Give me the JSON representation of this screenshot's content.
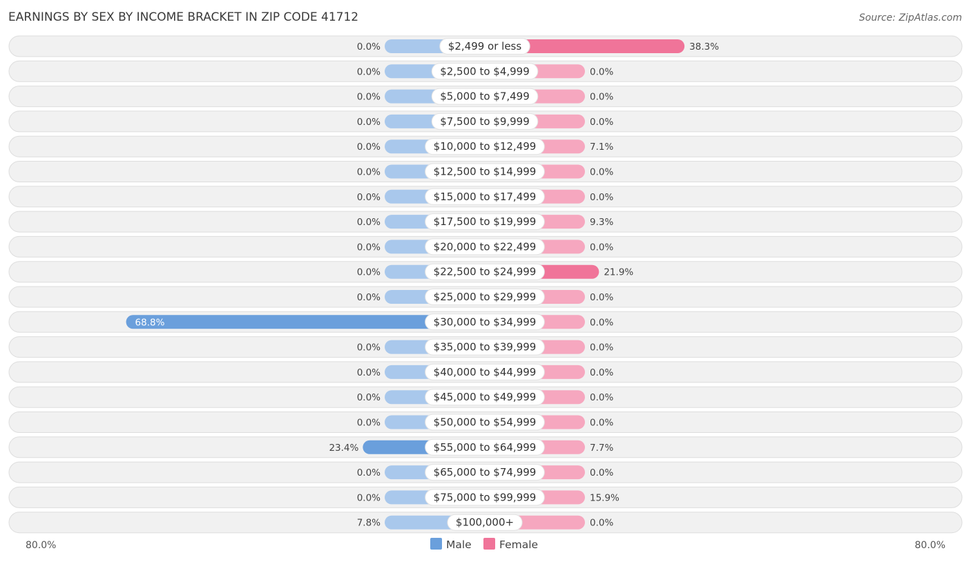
{
  "chart_data": {
    "type": "bar",
    "orientation": "horizontal-diverging",
    "title": "EARNINGS BY SEX BY INCOME BRACKET IN ZIP CODE 41712",
    "source": "Source: ZipAtlas.com",
    "categories": [
      "$2,499 or less",
      "$2,500 to $4,999",
      "$5,000 to $7,499",
      "$7,500 to $9,999",
      "$10,000 to $12,499",
      "$12,500 to $14,999",
      "$15,000 to $17,499",
      "$17,500 to $19,999",
      "$20,000 to $22,499",
      "$22,500 to $24,999",
      "$25,000 to $29,999",
      "$30,000 to $34,999",
      "$35,000 to $39,999",
      "$40,000 to $44,999",
      "$45,000 to $49,999",
      "$50,000 to $54,999",
      "$55,000 to $64,999",
      "$65,000 to $74,999",
      "$75,000 to $99,999",
      "$100,000+"
    ],
    "series": [
      {
        "name": "Male",
        "color": "#6a9fdc",
        "values": [
          0.0,
          0.0,
          0.0,
          0.0,
          0.0,
          0.0,
          0.0,
          0.0,
          0.0,
          0.0,
          0.0,
          68.8,
          0.0,
          0.0,
          0.0,
          0.0,
          23.4,
          0.0,
          0.0,
          7.8
        ],
        "labels": [
          "0.0%",
          "0.0%",
          "0.0%",
          "0.0%",
          "0.0%",
          "0.0%",
          "0.0%",
          "0.0%",
          "0.0%",
          "0.0%",
          "0.0%",
          "68.8%",
          "0.0%",
          "0.0%",
          "0.0%",
          "0.0%",
          "23.4%",
          "0.0%",
          "0.0%",
          "7.8%"
        ]
      },
      {
        "name": "Female",
        "color": "#f07499",
        "values": [
          38.3,
          0.0,
          0.0,
          0.0,
          7.1,
          0.0,
          0.0,
          9.3,
          0.0,
          21.9,
          0.0,
          0.0,
          0.0,
          0.0,
          0.0,
          0.0,
          7.7,
          0.0,
          15.9,
          0.0
        ],
        "labels": [
          "38.3%",
          "0.0%",
          "0.0%",
          "0.0%",
          "7.1%",
          "0.0%",
          "0.0%",
          "9.3%",
          "0.0%",
          "21.9%",
          "0.0%",
          "0.0%",
          "0.0%",
          "0.0%",
          "0.0%",
          "0.0%",
          "7.7%",
          "0.0%",
          "15.9%",
          "0.0%"
        ]
      }
    ],
    "xlim": [
      -80,
      80
    ],
    "axis_left_label": "80.0%",
    "axis_right_label": "80.0%",
    "legend": [
      "Male",
      "Female"
    ],
    "legend_position": "bottom-center"
  }
}
